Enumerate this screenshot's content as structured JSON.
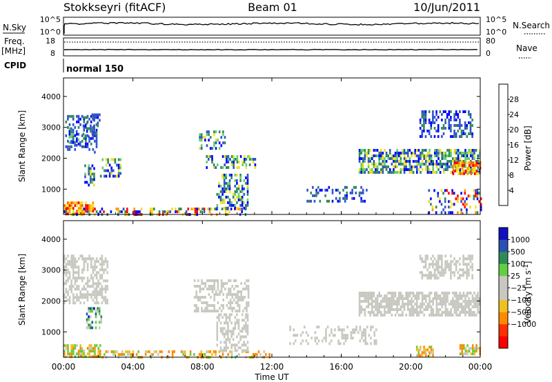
{
  "header": {
    "station": "Stokkseyri (fitACF)",
    "beam": "Beam 01",
    "date": "10/Jun/2011"
  },
  "noise_panel": {
    "left_label": "N.Sky",
    "right_label": "N.Search",
    "left_ticks": [
      "10^5",
      "10^0"
    ],
    "right_ticks": [
      "10^5",
      "10^0"
    ]
  },
  "freq_panel": {
    "left_label_line1": "Freq.",
    "left_label_line2": "[MHz]",
    "right_label": "Nave",
    "left_ticks": [
      "18",
      "8"
    ],
    "right_ticks": [
      "80",
      "0"
    ]
  },
  "cpid_panel": {
    "label": "CPID",
    "mode_text": "normal 150"
  },
  "colors": {
    "power_scale": [
      "#0000ff",
      "#3050d0",
      "#2e8b57",
      "#5fd06a",
      "#f0e020",
      "#ff9900",
      "#ff5a00",
      "#ff0000"
    ],
    "velocity_scale": [
      "#ff0000",
      "#ff3000",
      "#ff8a00",
      "#f0c020",
      "#c8c8c0",
      "#c8c8c0",
      "#60d040",
      "#2e8b57",
      "#2a50b0",
      "#1010c0"
    ]
  },
  "chart_data": [
    {
      "type": "heatmap",
      "name": "power",
      "xlabel": "",
      "ylabel": "Slant Range [km]",
      "xlim": [
        "00:00",
        "24:00"
      ],
      "ylim": [
        180,
        4600
      ],
      "yticks": [
        "1000",
        "2000",
        "3000",
        "4000"
      ],
      "colorbar_label": "Power [dB]",
      "colorbar_ticks": [
        "4",
        "8",
        "12",
        "16",
        "20",
        "24",
        "28"
      ],
      "colorbar_range": [
        0,
        32
      ],
      "regions": [
        {
          "t0": 0.1,
          "t1": 1.9,
          "r0": 2200,
          "r1": 3400,
          "density": 0.35,
          "level": "low"
        },
        {
          "t0": 1.1,
          "t1": 2.1,
          "r0": 2700,
          "r1": 3450,
          "density": 0.45,
          "level": "low"
        },
        {
          "t0": 0.3,
          "t1": 1.0,
          "r0": 2400,
          "r1": 3000,
          "density": 0.45,
          "level": "mid"
        },
        {
          "t0": 1.2,
          "t1": 1.8,
          "r0": 1100,
          "r1": 1800,
          "density": 0.5,
          "level": "mid"
        },
        {
          "t0": 2.1,
          "t1": 3.3,
          "r0": 1400,
          "r1": 2000,
          "density": 0.45,
          "level": "mid"
        },
        {
          "t0": 0.0,
          "t1": 1.7,
          "r0": 180,
          "r1": 600,
          "density": 0.7,
          "level": "high"
        },
        {
          "t0": 0.0,
          "t1": 10.5,
          "r0": 180,
          "r1": 400,
          "density": 0.35,
          "level": "mix"
        },
        {
          "t0": 7.8,
          "t1": 9.3,
          "r0": 2300,
          "r1": 2900,
          "density": 0.4,
          "level": "mid"
        },
        {
          "t0": 8.2,
          "t1": 11.0,
          "r0": 1700,
          "r1": 2100,
          "density": 0.45,
          "level": "mid"
        },
        {
          "t0": 8.8,
          "t1": 10.6,
          "r0": 350,
          "r1": 1500,
          "density": 0.45,
          "level": "mid"
        },
        {
          "t0": 14.0,
          "t1": 17.5,
          "r0": 600,
          "r1": 1100,
          "density": 0.3,
          "level": "low"
        },
        {
          "t0": 17.0,
          "t1": 24.0,
          "r0": 1550,
          "r1": 2300,
          "density": 0.65,
          "level": "mid"
        },
        {
          "t0": 20.5,
          "t1": 23.5,
          "r0": 2700,
          "r1": 3550,
          "density": 0.45,
          "level": "low"
        },
        {
          "t0": 22.4,
          "t1": 24.0,
          "r0": 1500,
          "r1": 1900,
          "density": 0.7,
          "level": "high"
        },
        {
          "t0": 21.0,
          "t1": 24.0,
          "r0": 250,
          "r1": 1000,
          "density": 0.3,
          "level": "mix"
        }
      ]
    },
    {
      "type": "heatmap",
      "name": "velocity",
      "xlabel": "Time UT",
      "ylabel": "Slant Range [km]",
      "xlim": [
        "00:00",
        "24:00"
      ],
      "xticks": [
        "00:00",
        "04:00",
        "08:00",
        "12:00",
        "16:00",
        "20:00",
        "00:00"
      ],
      "ylim": [
        180,
        4600
      ],
      "yticks": [
        "1000",
        "2000",
        "3000",
        "4000"
      ],
      "colorbar_label": "Velocity [m s^-1]",
      "colorbar_ticks": [
        "1000",
        "500",
        "100",
        "25",
        "−25",
        "−100",
        "−500",
        "−1000"
      ],
      "regions": [
        {
          "t0": 0.0,
          "t1": 2.5,
          "r0": 1900,
          "r1": 3500,
          "density": 0.55,
          "level": "gs"
        },
        {
          "t0": 1.3,
          "t1": 2.2,
          "r0": 1100,
          "r1": 1800,
          "density": 0.5,
          "level": "pos"
        },
        {
          "t0": 0.0,
          "t1": 2.1,
          "r0": 180,
          "r1": 600,
          "density": 0.75,
          "level": "neg"
        },
        {
          "t0": 2.1,
          "t1": 12.0,
          "r0": 180,
          "r1": 400,
          "density": 0.35,
          "level": "neg"
        },
        {
          "t0": 7.5,
          "t1": 10.6,
          "r0": 1700,
          "r1": 2700,
          "density": 0.5,
          "level": "gs"
        },
        {
          "t0": 8.8,
          "t1": 10.6,
          "r0": 400,
          "r1": 1600,
          "density": 0.45,
          "level": "gs"
        },
        {
          "t0": 13.0,
          "t1": 18.0,
          "r0": 600,
          "r1": 1200,
          "density": 0.3,
          "level": "gs"
        },
        {
          "t0": 17.0,
          "t1": 24.0,
          "r0": 1550,
          "r1": 2300,
          "density": 0.7,
          "level": "gs"
        },
        {
          "t0": 20.5,
          "t1": 23.5,
          "r0": 2700,
          "r1": 3500,
          "density": 0.5,
          "level": "gs"
        },
        {
          "t0": 20.3,
          "t1": 21.3,
          "r0": 250,
          "r1": 550,
          "density": 0.7,
          "level": "neg"
        },
        {
          "t0": 22.8,
          "t1": 24.0,
          "r0": 250,
          "r1": 600,
          "density": 0.7,
          "level": "neg"
        }
      ]
    }
  ]
}
